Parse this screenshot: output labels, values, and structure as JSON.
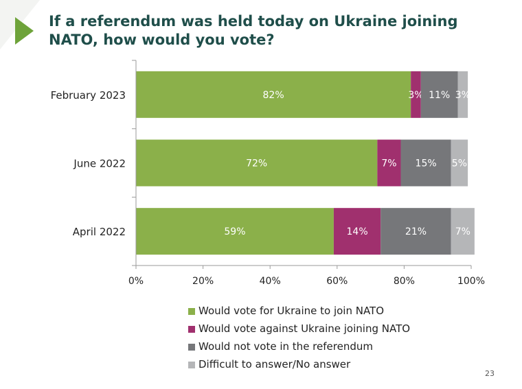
{
  "slide": {
    "title": "If a referendum was held today on Ukraine joining NATO, how would you vote?",
    "page_number": "23"
  },
  "chart_data": {
    "type": "bar",
    "orientation": "horizontal",
    "stacked": true,
    "categories": [
      "February 2023",
      "June 2022",
      "April 2022"
    ],
    "series": [
      {
        "name": "Would vote for Ukraine to join NATO",
        "values": [
          82,
          72,
          59
        ],
        "labels": [
          "82%",
          "72%",
          "59%"
        ],
        "color": "#8bb04a"
      },
      {
        "name": "Would vote against Ukraine joining NATO",
        "values": [
          3,
          7,
          14
        ],
        "labels": [
          "3%",
          "7%",
          "14%"
        ],
        "color": "#a0306e"
      },
      {
        "name": "Would not vote in the referendum",
        "values": [
          11,
          15,
          21
        ],
        "labels": [
          "11%",
          "15%",
          "21%"
        ],
        "color": "#76777a"
      },
      {
        "name": "Difficult to answer/No answer",
        "values": [
          3,
          5,
          7
        ],
        "labels": [
          "3%",
          "5%",
          "7%"
        ],
        "color": "#b5b6b8"
      }
    ],
    "xlim": [
      0,
      100
    ],
    "x_ticks": [
      "0%",
      "20%",
      "40%",
      "60%",
      "80%",
      "100%"
    ],
    "grid": false,
    "legend_position": "bottom"
  }
}
